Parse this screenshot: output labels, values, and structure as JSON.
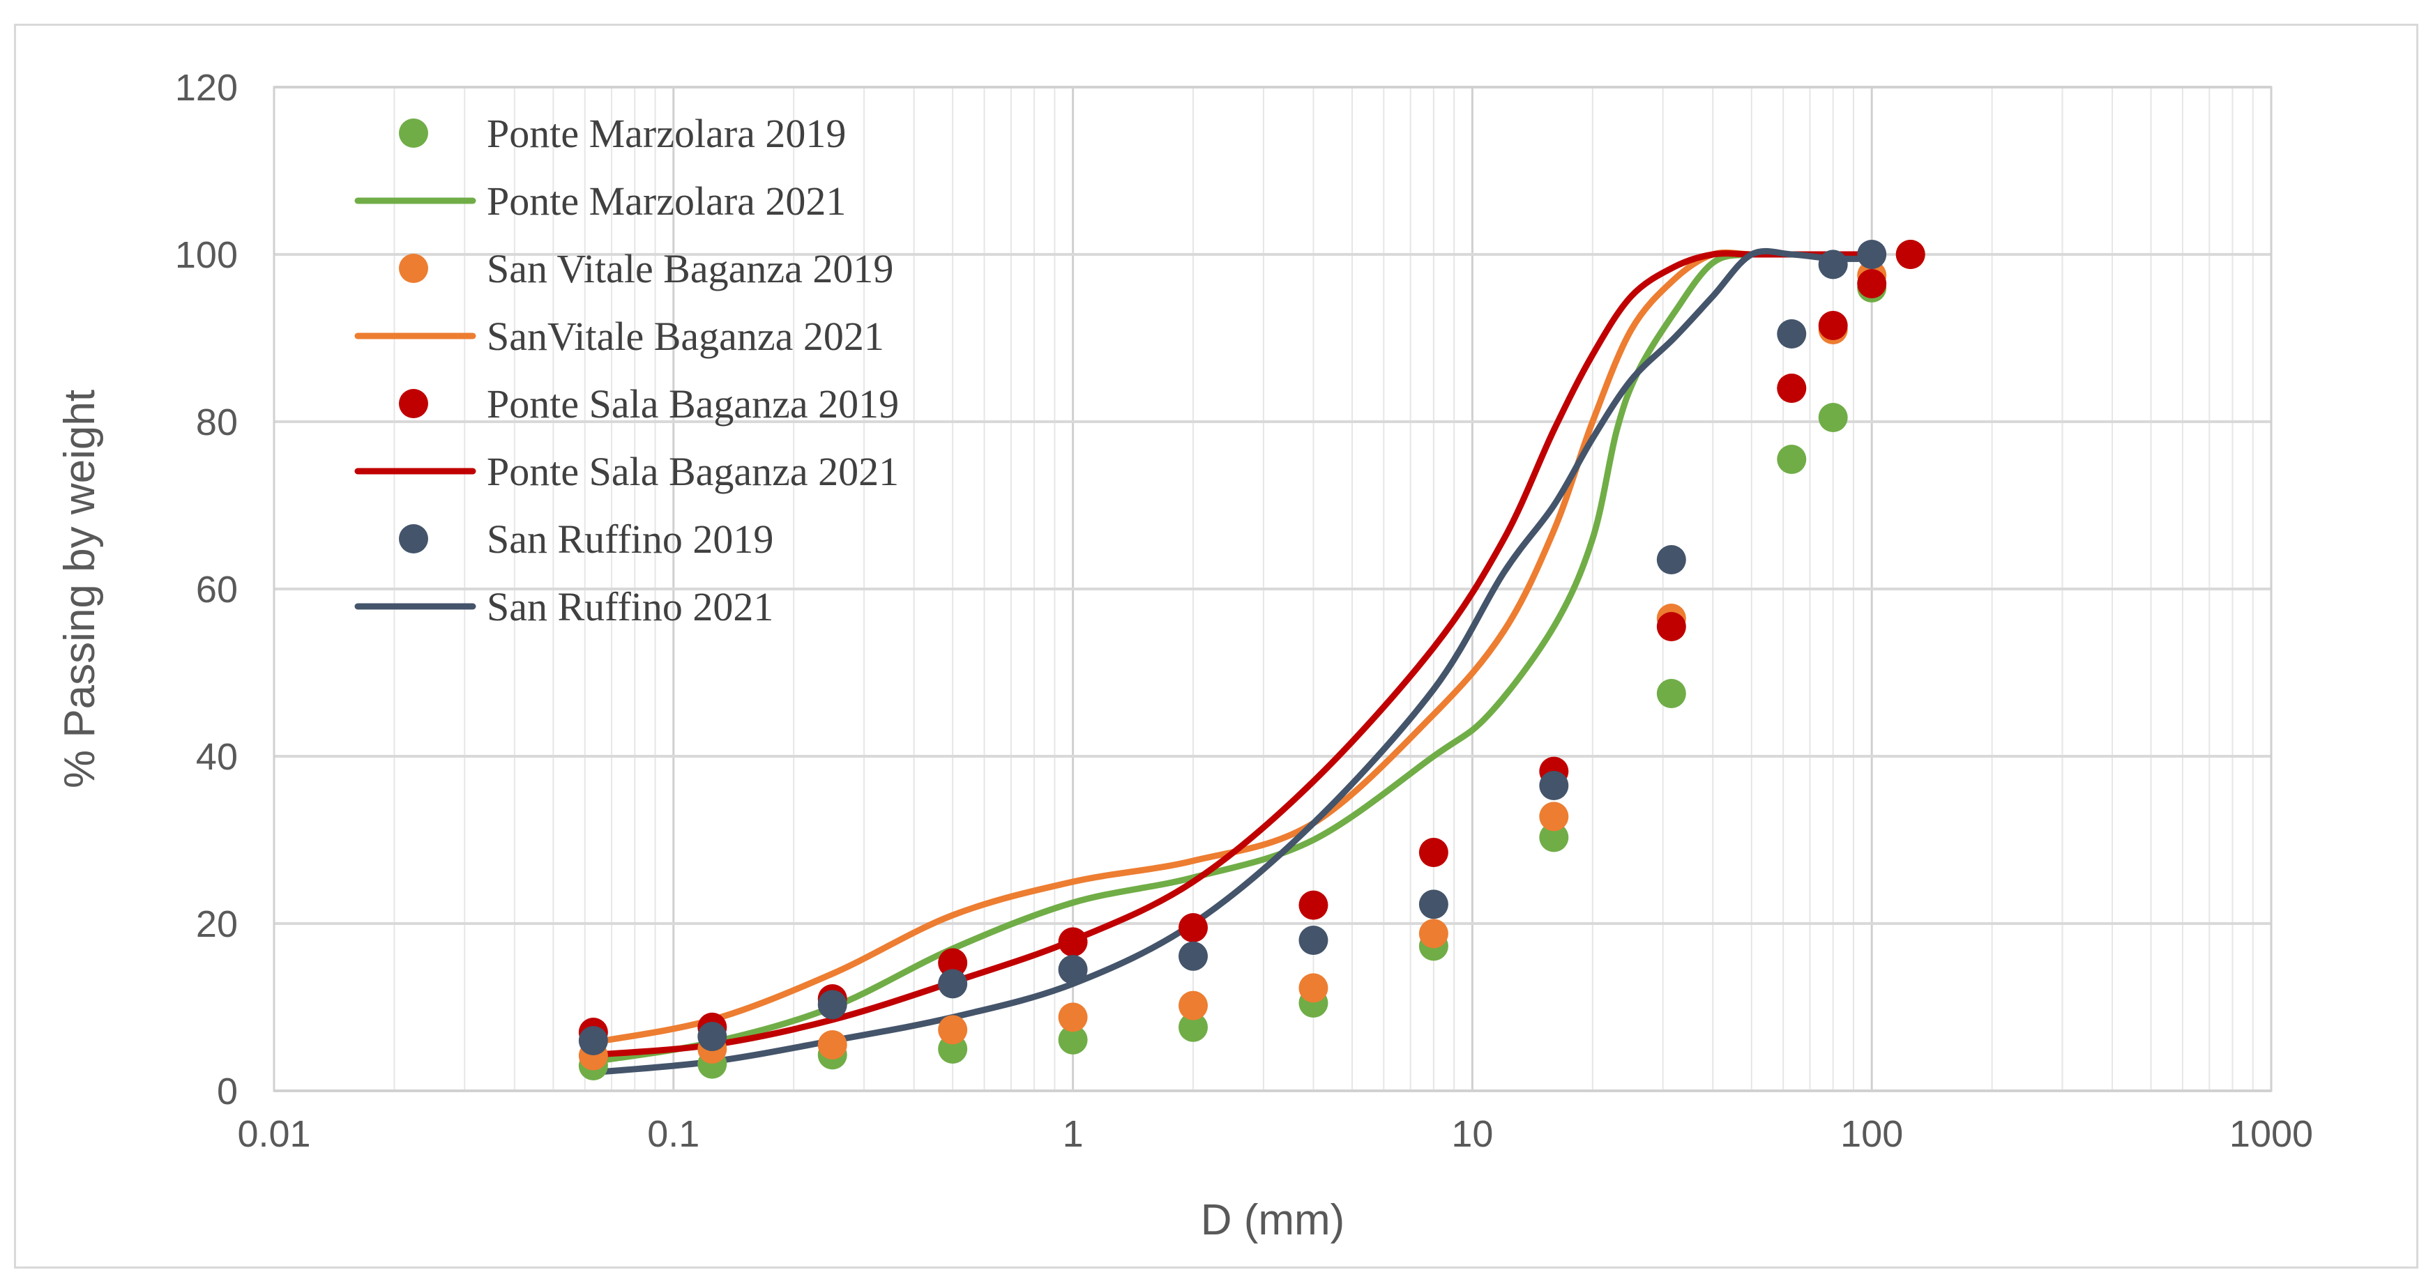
{
  "chart_data": {
    "type": "scatter",
    "title": "",
    "xlabel": "D (mm)",
    "ylabel": "% Passing by weight",
    "xscale": "log",
    "xlim": [
      0.01,
      1000
    ],
    "ylim": [
      0,
      120
    ],
    "x_ticks": [
      "0.01",
      "0.1",
      "1",
      "10",
      "100",
      "1000"
    ],
    "y_ticks": [
      "0",
      "20",
      "40",
      "60",
      "80",
      "100",
      "120"
    ],
    "grid": true,
    "legend_position": "top-left",
    "series": [
      {
        "name": "Ponte Marzolara 2019",
        "kind": "points",
        "color": "#70ad47",
        "x": [
          0.063,
          0.125,
          0.25,
          0.5,
          1,
          2,
          4,
          8,
          16,
          31.5,
          63,
          80,
          100,
          125
        ],
        "y": [
          3,
          3.2,
          4.3,
          5,
          6.1,
          7.6,
          10.5,
          17.3,
          30.3,
          47.5,
          75.5,
          80.5,
          96,
          100
        ]
      },
      {
        "name": "Ponte Marzolara 2021",
        "kind": "line",
        "color": "#70ad47",
        "x": [
          0.063,
          0.125,
          0.25,
          0.5,
          1,
          2,
          4,
          8,
          11,
          16,
          20,
          23,
          26,
          32,
          40,
          50,
          63,
          80,
          100
        ],
        "y": [
          3.5,
          5.8,
          10,
          17,
          22.5,
          25.5,
          30,
          40,
          45,
          55.5,
          66,
          79,
          86,
          93,
          99,
          100,
          100,
          100,
          100
        ]
      },
      {
        "name": "San Vitale Baganza 2019",
        "kind": "points",
        "color": "#ed7d31",
        "x": [
          0.063,
          0.125,
          0.25,
          0.5,
          1,
          2,
          4,
          8,
          16,
          31.5,
          63,
          80,
          100,
          125
        ],
        "y": [
          4.2,
          5,
          5.5,
          7.3,
          8.8,
          10.2,
          12.3,
          18.8,
          32.8,
          56.5,
          84,
          91,
          97.5,
          100
        ]
      },
      {
        "name": "SanVitale Baganza 2021",
        "kind": "line",
        "color": "#ed7d31",
        "x": [
          0.063,
          0.125,
          0.25,
          0.5,
          1,
          2,
          4,
          8,
          12,
          16,
          20,
          25,
          32,
          40,
          50,
          63,
          80,
          100
        ],
        "y": [
          5.8,
          8.5,
          14,
          21,
          25,
          27.5,
          32,
          45,
          55,
          67,
          80,
          91,
          97,
          100,
          100,
          100,
          100,
          100
        ]
      },
      {
        "name": "Ponte Sala Baganza 2019",
        "kind": "points",
        "color": "#c00000",
        "x": [
          0.063,
          0.125,
          0.25,
          0.5,
          1,
          2,
          4,
          8,
          16,
          31.5,
          63,
          80,
          100,
          125
        ],
        "y": [
          7,
          7.6,
          11,
          15.3,
          17.8,
          19.5,
          22.2,
          28.5,
          38.2,
          55.5,
          84,
          91.5,
          96.5,
          100
        ]
      },
      {
        "name": "Ponte Sala Baganza 2021",
        "kind": "line",
        "color": "#c00000",
        "x": [
          0.063,
          0.125,
          0.25,
          0.5,
          1,
          2,
          4,
          8,
          12,
          16,
          20,
          25,
          32,
          40,
          50,
          63,
          80,
          100
        ],
        "y": [
          4.3,
          5.5,
          8.5,
          13,
          18,
          25,
          37,
          53,
          66,
          79,
          88,
          95,
          98.5,
          100,
          100,
          100,
          100,
          100
        ]
      },
      {
        "name": "San Ruffino 2019",
        "kind": "points",
        "color": "#44546a",
        "x": [
          0.063,
          0.125,
          0.25,
          0.5,
          1,
          2,
          4,
          8,
          16,
          31.5,
          63,
          80,
          100
        ],
        "y": [
          6,
          6.5,
          10.3,
          12.8,
          14.5,
          16.1,
          18,
          22.3,
          36.5,
          63.5,
          90.5,
          98.8,
          100
        ]
      },
      {
        "name": "San Ruffino 2021",
        "kind": "line",
        "color": "#44546a",
        "x": [
          0.063,
          0.125,
          0.25,
          0.5,
          1,
          2,
          4,
          8,
          12,
          16,
          20,
          25,
          32,
          40,
          50,
          63,
          80,
          100
        ],
        "y": [
          2.2,
          3.5,
          6,
          8.8,
          12.8,
          20,
          32,
          48,
          62,
          70,
          78,
          85,
          90,
          95,
          100,
          100,
          99.5,
          99.5
        ]
      }
    ]
  }
}
